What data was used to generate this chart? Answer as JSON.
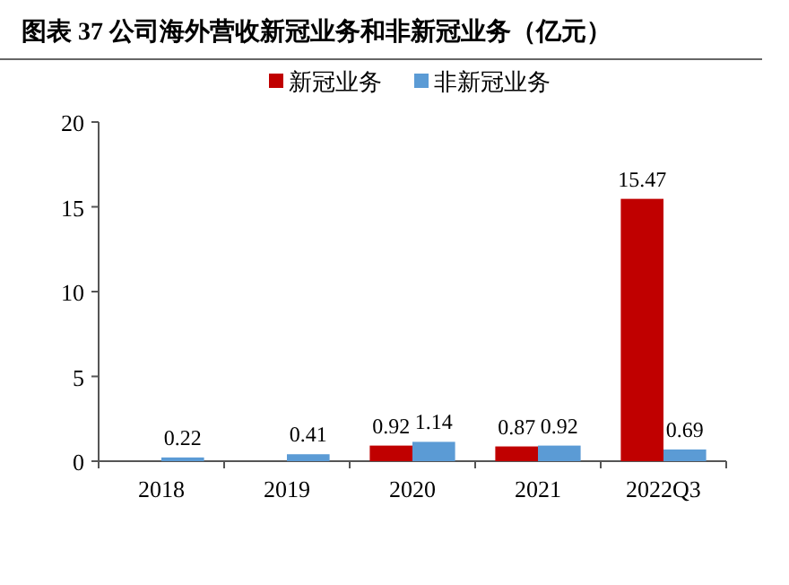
{
  "chart_data": {
    "type": "bar",
    "title": "图表 37 公司海外营收新冠业务和非新冠业务（亿元）",
    "categories": [
      "2018",
      "2019",
      "2020",
      "2021",
      "2022Q3"
    ],
    "series": [
      {
        "name": "新冠业务",
        "color": "#c00000",
        "values": [
          null,
          null,
          0.92,
          0.87,
          15.47
        ]
      },
      {
        "name": "非新冠业务",
        "color": "#5b9bd5",
        "values": [
          0.22,
          0.41,
          1.14,
          0.92,
          0.69
        ]
      }
    ],
    "ylim": [
      0,
      20
    ],
    "yticks": [
      0,
      5,
      10,
      15,
      20
    ],
    "data_labels": true,
    "legend": "top",
    "grid": false
  }
}
